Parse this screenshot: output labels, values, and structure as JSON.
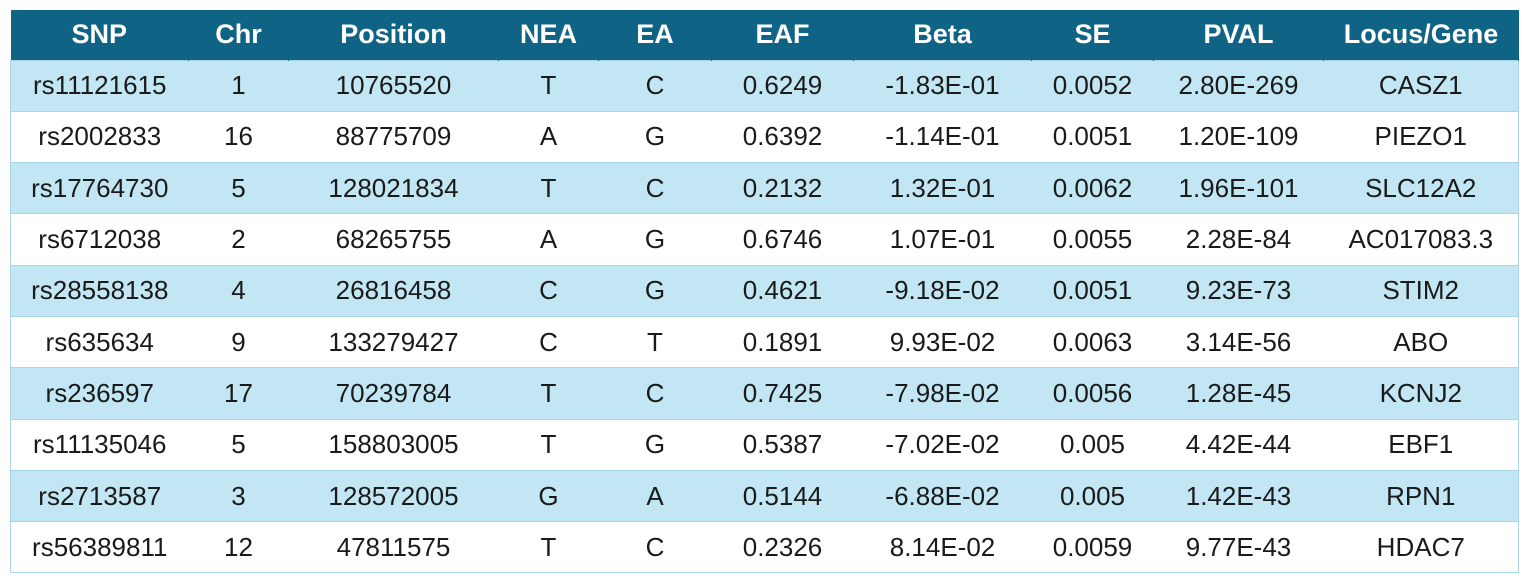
{
  "table": {
    "headers": [
      "SNP",
      "Chr",
      "Position",
      "NEA",
      "EA",
      "EAF",
      "Beta",
      "SE",
      "PVAL",
      "Locus/Gene"
    ],
    "rows": [
      [
        "rs11121615",
        "1",
        "10765520",
        "T",
        "C",
        "0.6249",
        "-1.83E-01",
        "0.0052",
        "2.80E-269",
        "CASZ1"
      ],
      [
        "rs2002833",
        "16",
        "88775709",
        "A",
        "G",
        "0.6392",
        "-1.14E-01",
        "0.0051",
        "1.20E-109",
        "PIEZO1"
      ],
      [
        "rs17764730",
        "5",
        "128021834",
        "T",
        "C",
        "0.2132",
        "1.32E-01",
        "0.0062",
        "1.96E-101",
        "SLC12A2"
      ],
      [
        "rs6712038",
        "2",
        "68265755",
        "A",
        "G",
        "0.6746",
        "1.07E-01",
        "0.0055",
        "2.28E-84",
        "AC017083.3"
      ],
      [
        "rs28558138",
        "4",
        "26816458",
        "C",
        "G",
        "0.4621",
        "-9.18E-02",
        "0.0051",
        "9.23E-73",
        "STIM2"
      ],
      [
        "rs635634",
        "9",
        "133279427",
        "C",
        "T",
        "0.1891",
        "9.93E-02",
        "0.0063",
        "3.14E-56",
        "ABO"
      ],
      [
        "rs236597",
        "17",
        "70239784",
        "T",
        "C",
        "0.7425",
        "-7.98E-02",
        "0.0056",
        "1.28E-45",
        "KCNJ2"
      ],
      [
        "rs11135046",
        "5",
        "158803005",
        "T",
        "G",
        "0.5387",
        "-7.02E-02",
        "0.005",
        "4.42E-44",
        "EBF1"
      ],
      [
        "rs2713587",
        "3",
        "128572005",
        "G",
        "A",
        "0.5144",
        "-6.88E-02",
        "0.005",
        "1.42E-43",
        "RPN1"
      ],
      [
        "rs56389811",
        "12",
        "47811575",
        "T",
        "C",
        "0.2326",
        "8.14E-02",
        "0.0059",
        "9.77E-43",
        "HDAC7"
      ]
    ]
  },
  "colors": {
    "header_bg": "#0f6384",
    "header_text": "#ffffff",
    "stripe_bg": "#c2e6f4",
    "row_bg": "#ffffff"
  }
}
